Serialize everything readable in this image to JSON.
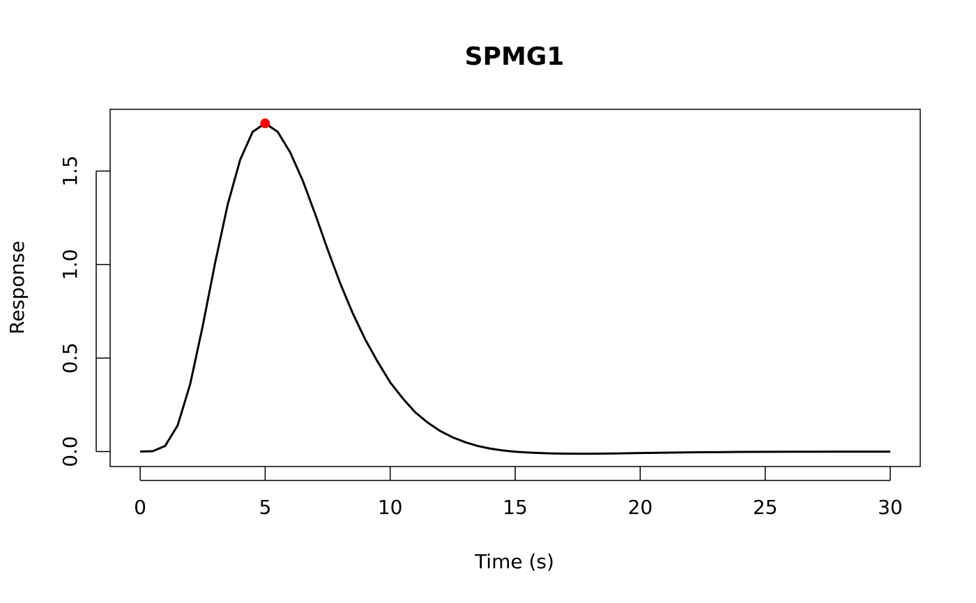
{
  "chart_data": {
    "type": "line",
    "title": "SPMG1",
    "xlabel": "Time (s)",
    "ylabel": "Response",
    "xlim": [
      -1.2,
      31.2
    ],
    "ylim": [
      -0.08,
      1.83
    ],
    "x_ticks": [
      0,
      5,
      10,
      15,
      20,
      25,
      30
    ],
    "x_tick_labels": [
      "0",
      "5",
      "10",
      "15",
      "20",
      "25",
      "30"
    ],
    "y_ticks": [
      0.0,
      0.5,
      1.0,
      1.5
    ],
    "y_tick_labels": [
      "0.0",
      "0.5",
      "1.0",
      "1.5"
    ],
    "grid": false,
    "series": [
      {
        "color": "#000000",
        "x": [
          0,
          0.5,
          1,
          1.5,
          2,
          2.5,
          3,
          3.5,
          4,
          4.5,
          5,
          5.5,
          6,
          6.5,
          7,
          7.5,
          8,
          8.5,
          9,
          9.5,
          10,
          10.5,
          11,
          11.5,
          12,
          12.5,
          13,
          13.5,
          14,
          14.5,
          15,
          15.5,
          16,
          16.5,
          17,
          17.5,
          18,
          19,
          20,
          21,
          22,
          23,
          24,
          25,
          26,
          27,
          28,
          29,
          30
        ],
        "y": [
          0.0,
          0.002,
          0.03,
          0.14,
          0.36,
          0.67,
          1.01,
          1.32,
          1.56,
          1.71,
          1.755,
          1.71,
          1.6,
          1.45,
          1.27,
          1.08,
          0.9,
          0.74,
          0.6,
          0.48,
          0.37,
          0.285,
          0.21,
          0.155,
          0.11,
          0.076,
          0.05,
          0.03,
          0.016,
          0.006,
          -0.001,
          -0.005,
          -0.008,
          -0.01,
          -0.011,
          -0.0115,
          -0.0115,
          -0.01,
          -0.008,
          -0.006,
          -0.004,
          -0.003,
          -0.002,
          -0.0015,
          -0.001,
          -0.0007,
          -0.0005,
          -0.0003,
          -0.0002
        ]
      }
    ],
    "highlight_point": {
      "x": 5,
      "y": 1.755,
      "color": "#ff0000"
    }
  }
}
